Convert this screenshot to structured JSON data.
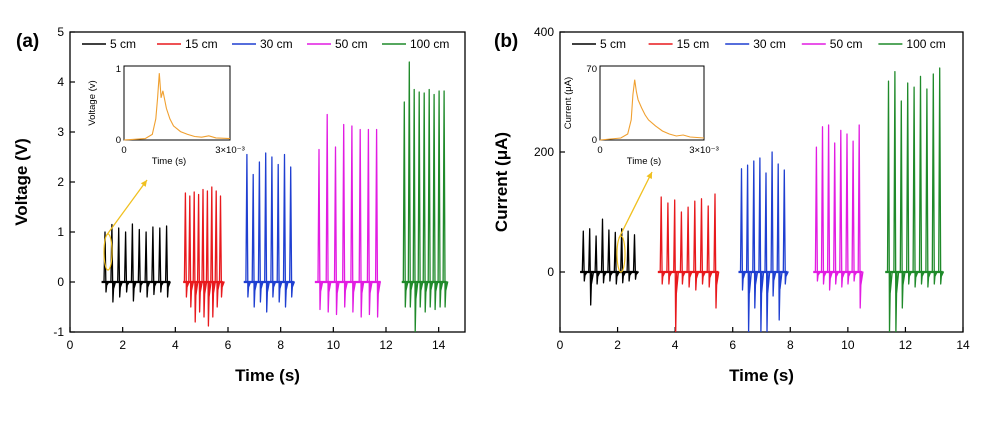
{
  "chart_data": [
    {
      "type": "line",
      "panel_label": "(a)",
      "xlabel": "Time (s)",
      "ylabel": "Voltage (V)",
      "xlim": [
        0,
        15
      ],
      "ylim": [
        -1,
        5
      ],
      "xticks": [
        0,
        2,
        4,
        6,
        8,
        10,
        12,
        14
      ],
      "yticks": [
        -1,
        0,
        1,
        2,
        3,
        4,
        5
      ],
      "legend_position": "top",
      "series": [
        {
          "name": "5 cm",
          "color": "#000000",
          "x_range": [
            1.2,
            3.8
          ],
          "peaks": [
            1.0,
            1.15,
            1.08,
            1.0,
            1.16,
            1.05,
            1.0,
            1.1,
            1.08,
            1.12
          ],
          "negative": [
            -0.2,
            -0.4,
            -0.3,
            -0.2,
            -0.38,
            -0.2,
            -0.3,
            -0.25,
            -0.2,
            -0.3
          ]
        },
        {
          "name": "15 cm",
          "color": "#e8191d",
          "x_range": [
            4.3,
            5.8
          ],
          "peaks": [
            1.78,
            1.72,
            1.8,
            1.75,
            1.85,
            1.82,
            1.9,
            1.82,
            1.72
          ],
          "negative": [
            -0.3,
            -0.5,
            -0.8,
            -0.6,
            -0.7,
            -0.88,
            -0.7,
            -0.5,
            -0.3
          ]
        },
        {
          "name": "30 cm",
          "color": "#1f3fd1",
          "x_range": [
            6.6,
            8.5
          ],
          "peaks": [
            2.55,
            2.15,
            2.4,
            2.58,
            2.5,
            2.35,
            2.55,
            2.3
          ],
          "negative": [
            -0.3,
            -0.5,
            -0.4,
            -0.6,
            -0.3,
            -0.4,
            -0.5,
            -0.3
          ]
        },
        {
          "name": "50 cm",
          "color": "#e21ce2",
          "x_range": [
            9.3,
            11.8
          ],
          "peaks": [
            2.65,
            3.35,
            2.7,
            3.15,
            3.12,
            3.05,
            3.05,
            3.05
          ],
          "negative": [
            -0.55,
            -0.6,
            -0.65,
            -0.5,
            -0.6,
            -0.7,
            -0.65,
            -0.7
          ]
        },
        {
          "name": "100 cm",
          "color": "#1f8a2a",
          "x_range": [
            12.6,
            14.3
          ],
          "peaks": [
            3.6,
            4.4,
            3.85,
            3.8,
            3.78,
            3.85,
            3.75,
            3.82,
            3.82
          ],
          "negative": [
            -0.5,
            -0.5,
            -1.0,
            -0.5,
            -0.6,
            -0.5,
            -0.55,
            -0.5,
            -0.5
          ]
        }
      ],
      "inset": {
        "xlabel": "Time (s)",
        "ylabel": "Voltage (v)",
        "x_tick_labels": [
          "0",
          "3×10⁻³"
        ],
        "y_tick_labels": [
          "0",
          "1"
        ],
        "color": "#f0a030",
        "arrow_color": "#f0c020",
        "x": [
          0.0,
          0.3,
          0.6,
          0.8,
          0.9,
          0.95,
          1.0,
          1.05,
          1.1,
          1.2,
          1.3,
          1.4,
          1.6,
          1.8,
          2.0,
          2.2,
          2.4,
          2.6,
          3.0
        ],
        "y": [
          0.0,
          0.01,
          0.02,
          0.08,
          0.3,
          0.6,
          0.95,
          0.6,
          0.7,
          0.45,
          0.3,
          0.2,
          0.12,
          0.08,
          0.05,
          0.04,
          0.06,
          0.03,
          0.02
        ]
      }
    },
    {
      "type": "line",
      "panel_label": "(b)",
      "xlabel": "Time (s)",
      "ylabel": "Current (μA)",
      "xlim": [
        0,
        14
      ],
      "ylim": [
        -100,
        400
      ],
      "xticks": [
        0,
        2,
        4,
        6,
        8,
        10,
        12,
        14
      ],
      "yticks": [
        0,
        200,
        400
      ],
      "legend_position": "top",
      "series": [
        {
          "name": "5 cm",
          "color": "#000000",
          "x_range": [
            0.7,
            2.7
          ],
          "peaks": [
            68,
            72,
            60,
            88,
            70,
            66,
            72,
            68,
            62
          ],
          "negative": [
            -15,
            -55,
            -20,
            -18,
            -15,
            -20,
            -18,
            -15,
            -12
          ]
        },
        {
          "name": "15 cm",
          "color": "#e8191d",
          "x_range": [
            3.4,
            5.5
          ],
          "peaks": [
            125,
            115,
            120,
            100,
            108,
            118,
            122,
            110,
            130
          ],
          "negative": [
            -20,
            -20,
            -100,
            -20,
            -25,
            -30,
            -20,
            -25,
            -60
          ]
        },
        {
          "name": "30 cm",
          "color": "#1f3fd1",
          "x_range": [
            6.2,
            7.9
          ],
          "peaks": [
            172,
            178,
            185,
            190,
            165,
            200,
            180,
            170
          ],
          "negative": [
            -30,
            -100,
            -60,
            -100,
            -100,
            -40,
            -80,
            -20
          ]
        },
        {
          "name": "50 cm",
          "color": "#e21ce2",
          "x_range": [
            8.8,
            10.5
          ],
          "peaks": [
            208,
            242,
            245,
            215,
            236,
            230,
            218,
            245
          ],
          "negative": [
            -15,
            -20,
            -30,
            -20,
            -25,
            -20,
            -15,
            -60
          ]
        },
        {
          "name": "100 cm",
          "color": "#1f8a2a",
          "x_range": [
            11.3,
            13.3
          ],
          "peaks": [
            318,
            334,
            285,
            315,
            308,
            326,
            305,
            330,
            340
          ],
          "negative": [
            -100,
            -100,
            -60,
            -20,
            -25,
            -20,
            -25,
            -20,
            -20
          ]
        }
      ],
      "inset": {
        "xlabel": "Time (s)",
        "ylabel": "Current (μA)",
        "x_tick_labels": [
          "0",
          "3×10⁻³"
        ],
        "y_tick_labels": [
          "0",
          "70"
        ],
        "color": "#f0a030",
        "arrow_color": "#f0c020",
        "x": [
          0.0,
          0.3,
          0.6,
          0.8,
          0.9,
          0.95,
          1.0,
          1.05,
          1.1,
          1.2,
          1.3,
          1.4,
          1.6,
          1.8,
          2.0,
          2.2,
          2.4,
          2.6,
          3.0
        ],
        "y": [
          0.0,
          1,
          2,
          6,
          20,
          45,
          60,
          48,
          40,
          32,
          25,
          20,
          14,
          9,
          6,
          4,
          5,
          3,
          2
        ]
      }
    }
  ]
}
